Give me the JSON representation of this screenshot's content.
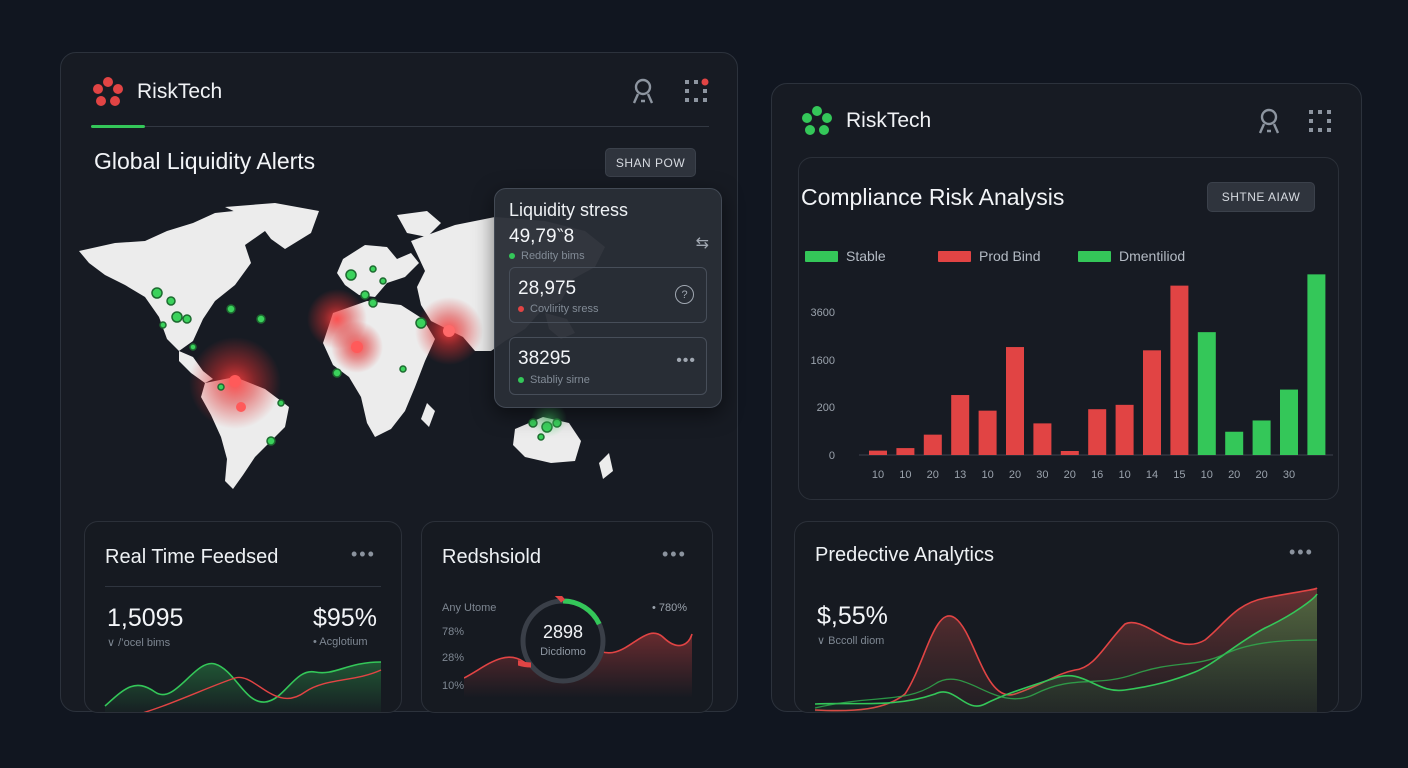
{
  "left_panel": {
    "brand": "RiskTech",
    "title": "Global Liquidity Alerts",
    "button": "SHAN POW",
    "popup": {
      "title": "Liquidity stress",
      "items": [
        {
          "value": "49,79‶8",
          "label": "Reddity bims",
          "dot": "#34c759"
        },
        {
          "value": "28,975",
          "label": "Covlirity sress",
          "dot": "#e14444"
        },
        {
          "value": "38295",
          "label": "Stabliy sirne",
          "dot": "#34c759"
        }
      ]
    }
  },
  "realtime": {
    "title": "Real Time Feedsed",
    "value_left": "1,5095",
    "label_left": "∨ /’ocel bims",
    "value_right": "$95%",
    "label_right": "• Acglotium"
  },
  "redshield": {
    "title": "Redshsiold",
    "label_top": "Any Utome",
    "ticks": [
      "78%",
      "28%",
      "10%"
    ],
    "gauge_value": "2898",
    "gauge_label": "Dicdiomo",
    "gauge_level": 0.18,
    "right_label": "• 780%"
  },
  "right_panel": {
    "brand": "RiskTech",
    "title": "Compliance Risk Analysis",
    "button": "SHTNE AIAW"
  },
  "chart_data": {
    "type": "bar",
    "legend": [
      {
        "name": "Stable",
        "color": "#34c759"
      },
      {
        "name": "Prod Bind",
        "color": "#e14444"
      },
      {
        "name": "Dmentiliod",
        "color": "#34c759"
      }
    ],
    "y_ticks": [
      "0",
      "200",
      "1600",
      "3600"
    ],
    "categories": [
      "10",
      "10",
      "20",
      "13",
      "10",
      "20",
      "30",
      "20",
      "16",
      "10",
      "14",
      "15",
      "10",
      "20",
      "20",
      "30"
    ],
    "values": [
      120,
      190,
      560,
      1650,
      1220,
      2970,
      870,
      110,
      1260,
      1380,
      2880,
      4660,
      3380,
      640,
      950,
      1800
    ],
    "colors": [
      "#e14444",
      "#e14444",
      "#e14444",
      "#e14444",
      "#e14444",
      "#e14444",
      "#e14444",
      "#e14444",
      "#e14444",
      "#e14444",
      "#e14444",
      "#e14444",
      "#34c759",
      "#34c759",
      "#34c759",
      "#34c759"
    ],
    "extra_bar": {
      "value": 4970,
      "color": "#34c759"
    },
    "ylim": [
      0,
      5200
    ]
  },
  "predictive": {
    "title": "Predective Analytics",
    "value": "$,55%",
    "label": "∨ Bccoll diom"
  },
  "colors": {
    "green": "#34c759",
    "red": "#e14444",
    "bg": "#111620"
  }
}
